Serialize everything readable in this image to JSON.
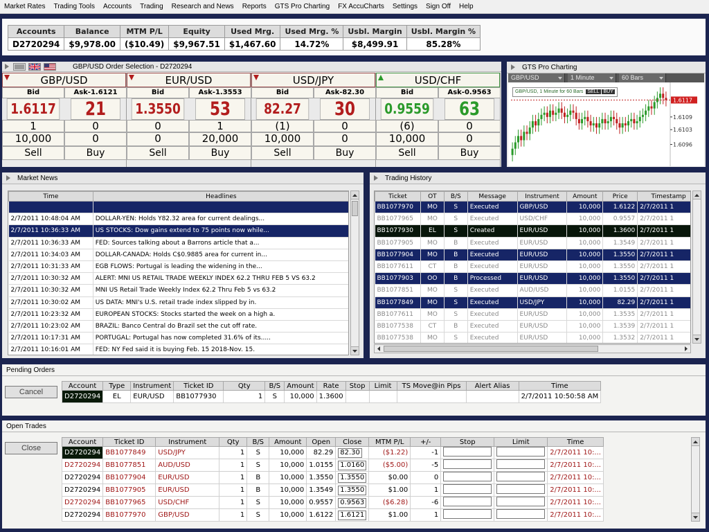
{
  "menu": [
    "Market Rates",
    "Trading Tools",
    "Accounts",
    "Trading",
    "Research and News",
    "Reports",
    "GTS Pro Charting",
    "FX AccuCharts",
    "Settings",
    "Sign Off",
    "Help"
  ],
  "account_summary": {
    "headers": [
      "Accounts",
      "Balance",
      "MTM P/L",
      "Equity",
      "Used Mrg.",
      "Used Mrg. %",
      "Usbl. Margin",
      "Usbl. Margin %"
    ],
    "values": [
      "D2720294",
      "$9,978.00",
      "($10.49)",
      "$9,967.51",
      "$1,467.60",
      "14.72%",
      "$8,499.91",
      "85.28%"
    ]
  },
  "order_selection": {
    "title": "GBP/USD Order Selection - D2720294",
    "tiles": [
      {
        "pair": "GBP/USD",
        "direction": "down",
        "bid_label": "Bid",
        "ask_label": "Ask-1.6121",
        "bid": "1.6117",
        "ask": "21",
        "r1": [
          "1",
          "0"
        ],
        "r2": [
          "10,000",
          "0"
        ],
        "sell": "Sell",
        "buy": "Buy"
      },
      {
        "pair": "EUR/USD",
        "direction": "down",
        "bid_label": "Bid",
        "ask_label": "Ask-1.3553",
        "bid": "1.3550",
        "ask": "53",
        "r1": [
          "0",
          "1"
        ],
        "r2": [
          "0",
          "20,000"
        ],
        "sell": "Sell",
        "buy": "Buy"
      },
      {
        "pair": "USD/JPY",
        "direction": "down",
        "bid_label": "Bid",
        "ask_label": "Ask-82.30",
        "bid": "82.27",
        "ask": "30",
        "r1": [
          "(1)",
          "0"
        ],
        "r2": [
          "10,000",
          "0"
        ],
        "sell": "Sell",
        "buy": "Buy"
      },
      {
        "pair": "USD/CHF",
        "direction": "up",
        "bid_label": "Bid",
        "ask_label": "Ask-0.9563",
        "bid": "0.9559",
        "ask": "63",
        "r1": [
          "(6)",
          "0"
        ],
        "r2": [
          "10,000",
          "0"
        ],
        "sell": "Sell",
        "buy": "Buy"
      }
    ]
  },
  "charting": {
    "title": "GTS Pro Charting",
    "symbol": "GBP/USD",
    "interval": "1 Minute",
    "bars": "60 Bars",
    "legend": "GBP/USD, 1 Minute for 60 Bars",
    "sell_label": "SELL",
    "buy_label": "BUY",
    "price_labels": [
      "1.6117",
      "1.6109",
      "1.6103",
      "1.6096"
    ]
  },
  "chart_data": {
    "type": "candlestick",
    "title": "GBP/USD, 1 Minute for 60 Bars",
    "y_ticks": [
      1.6117,
      1.6109,
      1.6103,
      1.6096
    ],
    "ylim": [
      1.6088,
      1.6124
    ],
    "closes": [
      1.6094,
      1.6097,
      1.61,
      1.6098,
      1.6102,
      1.6101,
      1.6104,
      1.6107,
      1.6105,
      1.6108,
      1.611,
      1.6111,
      1.6109,
      1.6112,
      1.611,
      1.6111,
      1.6113,
      1.6111,
      1.6109,
      1.611,
      1.6112,
      1.6111,
      1.6108,
      1.6106,
      1.6108,
      1.6109,
      1.6107,
      1.6105,
      1.6106,
      1.6104,
      1.6106,
      1.6108,
      1.6106,
      1.6107,
      1.6109,
      1.6108,
      1.6106,
      1.6104,
      1.6106,
      1.6105,
      1.6107,
      1.6108,
      1.6106,
      1.6107,
      1.6109,
      1.611,
      1.6112,
      1.6114,
      1.6113,
      1.6116,
      1.6118,
      1.612,
      1.6118,
      1.6117
    ]
  },
  "news": {
    "title": "Market News",
    "columns": [
      "Time",
      "Headlines"
    ],
    "rows": [
      [
        "",
        ""
      ],
      [
        "2/7/2011 10:48:04 AM",
        "DOLLAR-YEN: Holds Y82.32 area for current dealings..."
      ],
      [
        "2/7/2011 10:36:33 AM",
        "US STOCKS: Dow gains extend to 75 points now while..."
      ],
      [
        "2/7/2011 10:36:33 AM",
        "FED: Sources talking about a Barrons article that a..."
      ],
      [
        "2/7/2011 10:34:03 AM",
        "DOLLAR-CANADA: Holds C$0.9885 area for current in..."
      ],
      [
        "2/7/2011 10:31:33 AM",
        "EGB FLOWS: Portugal is leading the widening in the..."
      ],
      [
        "2/7/2011 10:30:32 AM",
        "ALERT: MNI US RETAIL TRADE WEEKLY INDEX 62.2 THRU FEB 5 VS 63.2"
      ],
      [
        "2/7/2011 10:30:32 AM",
        "MNI US Retail Trade Weekly Index 62.2 Thru Feb 5 vs 63.2"
      ],
      [
        "2/7/2011 10:30:02 AM",
        "US DATA: MNI's U.S. retail trade index slipped by in."
      ],
      [
        "2/7/2011 10:23:32 AM",
        "EUROPEAN STOCKS: Stocks started the week on a high a."
      ],
      [
        "2/7/2011 10:23:02 AM",
        "BRAZIL: Banco Central do Brazil set the cut off rate."
      ],
      [
        "2/7/2011 10:17:31 AM",
        "PORTUGAL: Portugal has now completed 31.6% of its....."
      ],
      [
        "2/7/2011 10:16:01 AM",
        "FED: NY Fed said it is buying Feb. 15 2018-Nov. 15."
      ]
    ]
  },
  "history": {
    "title": "Trading History",
    "columns": [
      "Ticket",
      "OT",
      "B/S",
      "Message",
      "Instrument",
      "Amount",
      "Price",
      "Timestamp"
    ],
    "rows": [
      {
        "style": "sel",
        "cells": [
          "BB1077970",
          "MO",
          "S",
          "Executed",
          "GBP/USD",
          "10,000",
          "1.6122",
          "2/7/2011 1"
        ]
      },
      {
        "style": "dim",
        "cells": [
          "BB1077965",
          "MO",
          "S",
          "Executed",
          "USD/CHF",
          "10,000",
          "0.9557",
          "2/7/2011 1"
        ]
      },
      {
        "style": "hl",
        "cells": [
          "BB1077930",
          "EL",
          "S",
          "Created",
          "EUR/USD",
          "10,000",
          "1.3600",
          "2/7/2011 1"
        ]
      },
      {
        "style": "dim",
        "cells": [
          "BB1077905",
          "MO",
          "B",
          "Executed",
          "EUR/USD",
          "10,000",
          "1.3549",
          "2/7/2011 1"
        ]
      },
      {
        "style": "sel",
        "cells": [
          "BB1077904",
          "MO",
          "B",
          "Executed",
          "EUR/USD",
          "10,000",
          "1.3550",
          "2/7/2011 1"
        ]
      },
      {
        "style": "dim",
        "cells": [
          "BB1077611",
          "CT",
          "B",
          "Executed",
          "EUR/USD",
          "10,000",
          "1.3550",
          "2/7/2011 1"
        ]
      },
      {
        "style": "sel",
        "cells": [
          "BB1077903",
          "OO",
          "B",
          "Processed",
          "EUR/USD",
          "10,000",
          "1.3550",
          "2/7/2011 1"
        ]
      },
      {
        "style": "dim",
        "cells": [
          "BB1077851",
          "MO",
          "S",
          "Executed",
          "AUD/USD",
          "10,000",
          "1.0155",
          "2/7/2011 1"
        ]
      },
      {
        "style": "sel",
        "cells": [
          "BB1077849",
          "MO",
          "S",
          "Executed",
          "USD/JPY",
          "10,000",
          "82.29",
          "2/7/2011 1"
        ]
      },
      {
        "style": "dim",
        "cells": [
          "BB1077611",
          "MO",
          "S",
          "Executed",
          "EUR/USD",
          "10,000",
          "1.3535",
          "2/7/2011 1"
        ]
      },
      {
        "style": "dim",
        "cells": [
          "BB1077538",
          "CT",
          "B",
          "Executed",
          "EUR/USD",
          "10,000",
          "1.3539",
          "2/7/2011 1"
        ]
      },
      {
        "style": "dim",
        "cells": [
          "BB1077538",
          "MO",
          "S",
          "Executed",
          "EUR/USD",
          "10,000",
          "1.3532",
          "2/7/2011 1"
        ]
      }
    ]
  },
  "pending": {
    "title": "Pending Orders",
    "button": "Cancel",
    "columns": [
      "Account",
      "Type",
      "Instrument",
      "Ticket ID",
      "Qty",
      "B/S",
      "Amount",
      "Rate",
      "Stop",
      "Limit",
      "TS Move@in Pips",
      "Alert Alias",
      "Time"
    ],
    "row": [
      "D2720294",
      "EL",
      "EUR/USD",
      "BB1077930",
      "1",
      "S",
      "10,000",
      "1.3600",
      "",
      "",
      "",
      "",
      "2/7/2011 10:50:58 AM"
    ]
  },
  "open_trades": {
    "title": "Open Trades",
    "button": "Close",
    "columns": [
      "Account",
      "Ticket ID",
      "Instrument",
      "Qty",
      "B/S",
      "Amount",
      "Open",
      "Close",
      "MTM P/L",
      "+/-",
      "Stop",
      "Limit",
      "Time"
    ],
    "rows": [
      [
        "D2720294",
        "BB1077849",
        "USD/JPY",
        "1",
        "S",
        "10,000",
        "82.29",
        "82.30",
        "($1.22)",
        "-1",
        "",
        "",
        "2/7/2011 10:..."
      ],
      [
        "D2720294",
        "BB1077851",
        "AUD/USD",
        "1",
        "S",
        "10,000",
        "1.0155",
        "1.0160",
        "($5.00)",
        "-5",
        "",
        "",
        "2/7/2011 10:..."
      ],
      [
        "D2720294",
        "BB1077904",
        "EUR/USD",
        "1",
        "B",
        "10,000",
        "1.3550",
        "1.3550",
        "$0.00",
        "0",
        "",
        "",
        "2/7/2011 10:..."
      ],
      [
        "D2720294",
        "BB1077905",
        "EUR/USD",
        "1",
        "B",
        "10,000",
        "1.3549",
        "1.3550",
        "$1.00",
        "1",
        "",
        "",
        "2/7/2011 10:..."
      ],
      [
        "D2720294",
        "BB1077965",
        "USD/CHF",
        "1",
        "S",
        "10,000",
        "0.9557",
        "0.9563",
        "($6.28)",
        "-6",
        "",
        "",
        "2/7/2011 10:..."
      ],
      [
        "D2720294",
        "BB1077970",
        "GBP/USD",
        "1",
        "S",
        "10,000",
        "1.6122",
        "1.6121",
        "$1.00",
        "1",
        "",
        "",
        "2/7/2011 10:..."
      ]
    ]
  }
}
